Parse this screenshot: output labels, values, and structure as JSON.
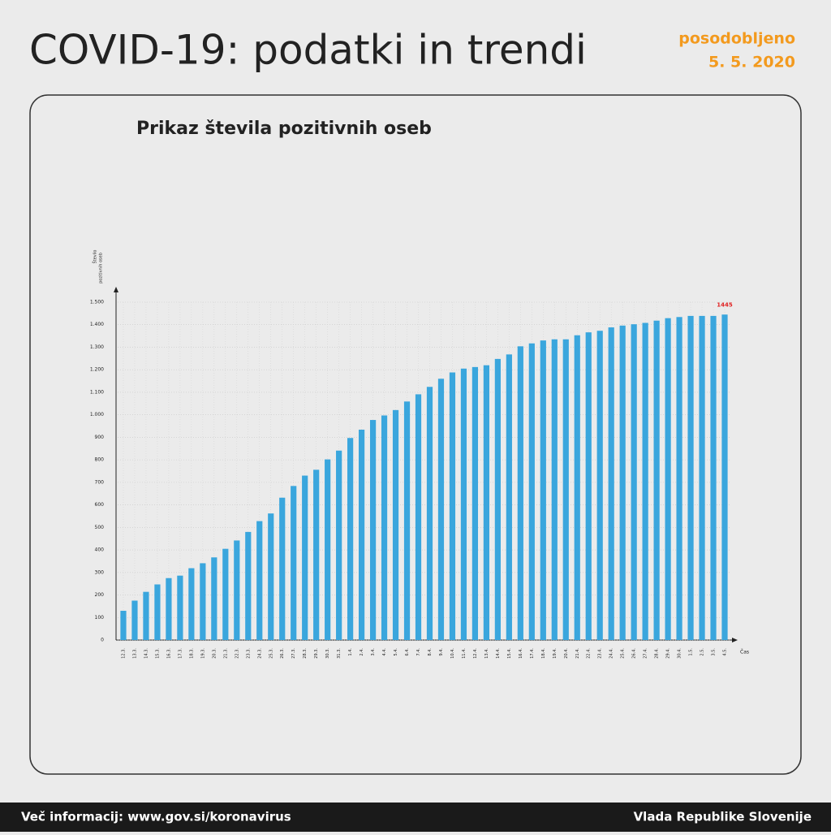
{
  "header": {
    "title": "COVID-19: podatki in trendi",
    "updated_label": "posodobljeno",
    "updated_date": "5. 5. 2020"
  },
  "footer": {
    "info": "Več informacij: www.gov.si/koronavirus",
    "publisher": "Vlada Republike Slovenije"
  },
  "chart_data": {
    "type": "bar",
    "title": "Prikaz števila pozitivnih oseb",
    "y_label": [
      "Število",
      "pozitivnih oseb"
    ],
    "x_label": "Čas",
    "color": "#3aa6dd",
    "grid": true,
    "categories": [
      "12.3.",
      "13.3.",
      "14.3.",
      "15.3.",
      "16.3.",
      "17.3.",
      "18.3.",
      "19.3.",
      "20.3.",
      "21.3.",
      "22.3.",
      "23.3.",
      "24.3.",
      "25.3.",
      "26.3.",
      "27.3.",
      "28.3.",
      "29.3.",
      "30.3.",
      "31.3.",
      "1.4.",
      "2.4.",
      "3.4.",
      "4.4.",
      "5.4.",
      "6.4.",
      "7.4.",
      "8.4.",
      "9.4.",
      "10.4.",
      "11.4.",
      "12.4.",
      "13.4.",
      "14.4.",
      "15.4.",
      "16.4.",
      "17.4.",
      "18.4.",
      "19.4.",
      "20.4.",
      "21.4.",
      "22.4.",
      "23.4.",
      "24.4.",
      "25.4.",
      "26.4.",
      "27.4.",
      "28.4.",
      "29.4.",
      "30.4.",
      "1.5.",
      "2.5.",
      "3.5.",
      "4.5."
    ],
    "values": [
      130,
      175,
      214,
      247,
      275,
      286,
      319,
      341,
      367,
      405,
      442,
      480,
      528,
      562,
      632,
      684,
      730,
      756,
      802,
      841,
      897,
      934,
      977,
      997,
      1021,
      1059,
      1091,
      1124,
      1160,
      1188,
      1205,
      1212,
      1220,
      1248,
      1268,
      1304,
      1317,
      1330,
      1335,
      1335,
      1353,
      1366,
      1373,
      1388,
      1396,
      1402,
      1408,
      1418,
      1429,
      1434,
      1439,
      1439,
      1439,
      1445
    ],
    "ylim": [
      0,
      1500
    ],
    "yticks": [
      0,
      100,
      200,
      300,
      400,
      500,
      600,
      700,
      800,
      900,
      {
        "value": 1000,
        "label": "1.000"
      },
      {
        "value": 1100,
        "label": "1.100"
      },
      {
        "value": 1200,
        "label": "1.200"
      },
      {
        "value": 1300,
        "label": "1.300"
      },
      {
        "value": 1400,
        "label": "1.400"
      },
      {
        "value": 1500,
        "label": "1.500"
      }
    ]
  }
}
